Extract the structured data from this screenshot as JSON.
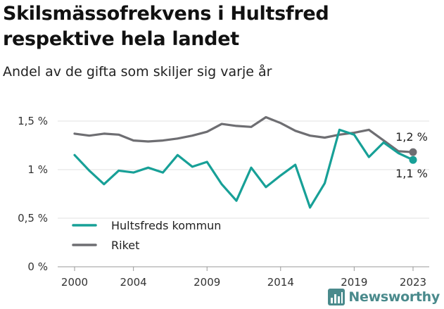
{
  "header": {
    "title": "Skilsmässofrekvens i Hultsfred respektive hela landet",
    "subtitle": "Andel av de gifta som skiljer sig varje år"
  },
  "brand": {
    "name": "Newsworthy",
    "icon": "bar-chart-logo-icon",
    "color": "#4a8a8c"
  },
  "chart_data": {
    "type": "line",
    "title": "Skilsmässofrekvens i Hultsfred respektive hela landet",
    "subtitle": "Andel av de gifta som skiljer sig varje år",
    "x": [
      2000,
      2001,
      2002,
      2003,
      2004,
      2005,
      2006,
      2007,
      2008,
      2009,
      2010,
      2011,
      2012,
      2013,
      2014,
      2015,
      2016,
      2017,
      2018,
      2019,
      2020,
      2021,
      2022,
      2023
    ],
    "x_ticks": [
      "2000",
      "2004",
      "2009",
      "2014",
      "2019",
      "2023"
    ],
    "y_ticks": [
      "0 %",
      "0,5 %",
      "1 %",
      "1,5 %"
    ],
    "ylim": [
      0,
      1.5
    ],
    "grid": true,
    "legend_position": "bottom-left",
    "series": [
      {
        "name": "Hultsfreds kommun",
        "color": "#17a097",
        "values": [
          1.15,
          0.99,
          0.85,
          0.99,
          0.97,
          1.02,
          0.97,
          1.15,
          1.03,
          1.08,
          0.85,
          0.68,
          1.02,
          0.82,
          0.94,
          1.05,
          0.61,
          0.86,
          1.41,
          1.36,
          1.13,
          1.28,
          1.17,
          1.1
        ],
        "end_label": "1,1 %"
      },
      {
        "name": "Riket",
        "color": "#6e6e72",
        "values": [
          1.37,
          1.35,
          1.37,
          1.36,
          1.3,
          1.29,
          1.3,
          1.32,
          1.35,
          1.39,
          1.47,
          1.45,
          1.44,
          1.54,
          1.48,
          1.4,
          1.35,
          1.33,
          1.36,
          1.38,
          1.41,
          1.3,
          1.19,
          1.18
        ],
        "end_label": "1,2 %"
      }
    ]
  }
}
